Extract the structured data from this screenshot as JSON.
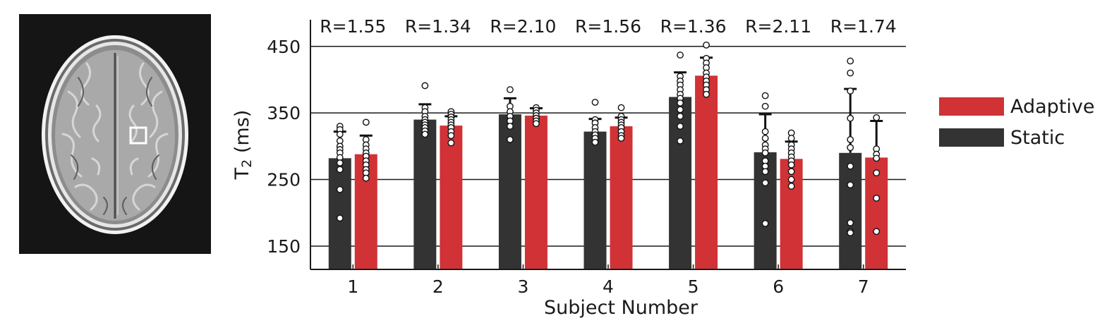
{
  "mri_image": {
    "description_icon": "brain-axial-mri-icon",
    "roi_marker": "square-roi-icon"
  },
  "colors": {
    "adaptive": "#d03236",
    "static": "#333333",
    "error_bar": "#111111",
    "point_fill": "#ffffff",
    "point_stroke": "#111111"
  },
  "chart_data": {
    "type": "bar",
    "xlabel": "Subject Number",
    "ylabel_main": "T",
    "ylabel_sub": "2",
    "ylabel_unit": " (ms)",
    "ylim": [
      115,
      490
    ],
    "yticks": [
      150,
      250,
      350,
      450
    ],
    "grid": true,
    "legend_position": "right",
    "categories": [
      "1",
      "2",
      "3",
      "4",
      "5",
      "6",
      "7"
    ],
    "ratios": [
      "R=1.55",
      "R=1.34",
      "R=2.10",
      "R=1.56",
      "R=1.36",
      "R=2.11",
      "R=1.74"
    ],
    "series": [
      {
        "name": "Static",
        "values": [
          282,
          340,
          348,
          322,
          374,
          291,
          290
        ],
        "errors": [
          40,
          23,
          24,
          19,
          37,
          57,
          96
        ],
        "points": [
          [
            330,
            325,
            318,
            308,
            300,
            295,
            290,
            283,
            275,
            265,
            235,
            192
          ],
          [
            391,
            358,
            352,
            345,
            340,
            336,
            332,
            328,
            323,
            318
          ],
          [
            385,
            360,
            352,
            345,
            338,
            330,
            310
          ],
          [
            366,
            340,
            335,
            328,
            322,
            317,
            312,
            306
          ],
          [
            437,
            405,
            398,
            392,
            385,
            378,
            372,
            365,
            355,
            345,
            330,
            308
          ],
          [
            376,
            360,
            322,
            312,
            302,
            296,
            290,
            278,
            270,
            262,
            245,
            184
          ],
          [
            428,
            410,
            383,
            342,
            310,
            298,
            270,
            242,
            185,
            172,
            170
          ]
        ]
      },
      {
        "name": "Adaptive",
        "values": [
          288,
          331,
          346,
          330,
          406,
          281,
          283
        ],
        "errors": [
          28,
          14,
          11,
          13,
          27,
          26,
          55
        ],
        "points": [
          [
            336,
            310,
            302,
            296,
            290,
            285,
            278,
            272,
            265,
            260,
            252
          ],
          [
            352,
            348,
            344,
            340,
            336,
            332,
            328,
            322,
            316,
            305
          ],
          [
            358,
            354,
            350,
            346,
            342,
            338,
            334
          ],
          [
            358,
            345,
            340,
            336,
            332,
            328,
            322,
            316,
            312
          ],
          [
            452,
            432,
            425,
            418,
            410,
            404,
            398,
            392,
            385,
            378
          ],
          [
            320,
            312,
            302,
            296,
            290,
            284,
            278,
            272,
            262,
            250,
            240
          ],
          [
            343,
            296,
            288,
            282,
            260,
            222,
            172
          ]
        ]
      }
    ]
  }
}
